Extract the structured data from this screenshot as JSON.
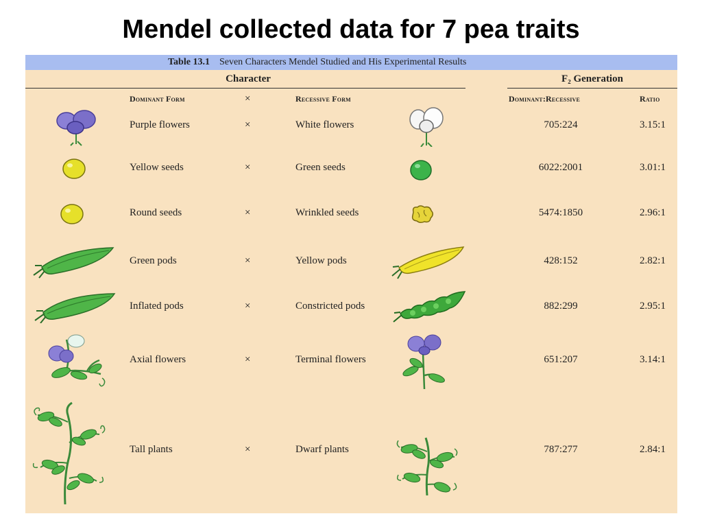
{
  "slide": {
    "title": "Mendel collected data for 7 pea traits"
  },
  "table": {
    "caption_number": "Table 13.1",
    "caption_text": "Seven Characters Mendel Studied and His Experimental Results",
    "group_character": "Character",
    "group_f2": "F₂ Generation",
    "col_dominant": "Dominant Form",
    "col_cross": "×",
    "col_recessive": "Recessive Form",
    "col_ratio_counts": "Dominant:Recessive",
    "col_ratio": "Ratio",
    "rows": [
      {
        "dominant": "Purple flowers",
        "cross": "×",
        "recessive": "White flowers",
        "counts": "705:224",
        "ratio": "3.15:1",
        "dom_icon": "purple-flower-icon",
        "rec_icon": "white-flower-icon"
      },
      {
        "dominant": "Yellow seeds",
        "cross": "×",
        "recessive": "Green seeds",
        "counts": "6022:2001",
        "ratio": "3.01:1",
        "dom_icon": "yellow-seed-icon",
        "rec_icon": "green-seed-icon"
      },
      {
        "dominant": "Round seeds",
        "cross": "×",
        "recessive": "Wrinkled seeds",
        "counts": "5474:1850",
        "ratio": "2.96:1",
        "dom_icon": "round-seed-icon",
        "rec_icon": "wrinkled-seed-icon"
      },
      {
        "dominant": "Green pods",
        "cross": "×",
        "recessive": "Yellow pods",
        "counts": "428:152",
        "ratio": "2.82:1",
        "dom_icon": "green-pod-icon",
        "rec_icon": "yellow-pod-icon"
      },
      {
        "dominant": "Inflated pods",
        "cross": "×",
        "recessive": "Constricted pods",
        "counts": "882:299",
        "ratio": "2.95:1",
        "dom_icon": "inflated-pod-icon",
        "rec_icon": "constricted-pod-icon"
      },
      {
        "dominant": "Axial flowers",
        "cross": "×",
        "recessive": "Terminal flowers",
        "counts": "651:207",
        "ratio": "3.14:1",
        "dom_icon": "axial-flowers-icon",
        "rec_icon": "terminal-flowers-icon"
      },
      {
        "dominant": "Tall plants",
        "cross": "×",
        "recessive": "Dwarf plants",
        "counts": "787:277",
        "ratio": "2.84:1",
        "dom_icon": "tall-plant-icon",
        "rec_icon": "dwarf-plant-icon"
      }
    ]
  },
  "colors": {
    "panel": "#f9e2c0",
    "caption_bar": "#a8bdf0",
    "purple": "#7b6fc9",
    "pea_yellow": "#e6e02a",
    "pea_green": "#3cb34a",
    "pod_green": "#4fb548",
    "pod_yellow": "#f0e32a"
  }
}
